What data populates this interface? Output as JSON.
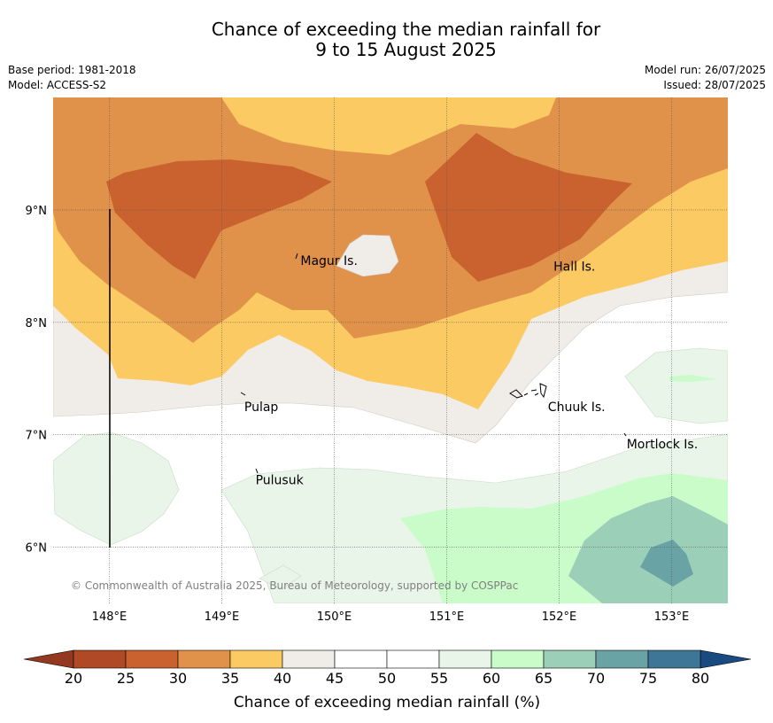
{
  "title": {
    "line1": "Chance of exceeding the median rainfall for",
    "line2": "9 to 15 August 2025"
  },
  "meta": {
    "base_period": "Base period: 1981-2018",
    "model": "Model: ACCESS-S2",
    "model_run": "Model run: 26/07/2025",
    "issued": "Issued: 28/07/2025"
  },
  "map": {
    "lon_range": [
      147.5,
      153.5
    ],
    "lat_range": [
      5.5,
      10.0
    ],
    "lon_ticks": [
      {
        "value": 148,
        "label": "148°E"
      },
      {
        "value": 149,
        "label": "149°E"
      },
      {
        "value": 150,
        "label": "150°E"
      },
      {
        "value": 151,
        "label": "151°E"
      },
      {
        "value": 152,
        "label": "152°E"
      },
      {
        "value": 153,
        "label": "153°E"
      }
    ],
    "lat_ticks": [
      {
        "value": 6,
        "label": "6°N"
      },
      {
        "value": 7,
        "label": "7°N"
      },
      {
        "value": 8,
        "label": "8°N"
      },
      {
        "value": 9,
        "label": "9°N"
      }
    ],
    "gridlines": true,
    "places": [
      {
        "name": "Magur Is.",
        "lon": 149.7,
        "lat": 8.55
      },
      {
        "name": "Hall Is.",
        "lon": 151.95,
        "lat": 8.5
      },
      {
        "name": "Pulap",
        "lon": 149.2,
        "lat": 7.25
      },
      {
        "name": "Chuuk Is.",
        "lon": 151.9,
        "lat": 7.25
      },
      {
        "name": "Mortlock Is.",
        "lon": 152.6,
        "lat": 6.92
      },
      {
        "name": "Pulusuk",
        "lon": 149.3,
        "lat": 6.6
      }
    ],
    "copyright": "© Commonwealth of Australia 2025, Bureau of Meteorology, supported by COSPPac"
  },
  "colorbar": {
    "ticks": [
      "20",
      "25",
      "30",
      "35",
      "40",
      "45",
      "50",
      "55",
      "60",
      "65",
      "70",
      "75",
      "80"
    ],
    "colors": [
      "#b04a26",
      "#c9622f",
      "#e0924a",
      "#fcca63",
      "#f0ede8",
      "#ffffff",
      "#ffffff",
      "#e9f5e9",
      "#c9fcc9",
      "#9bcfb8",
      "#6aa3a5",
      "#3e7697"
    ],
    "under_color": "#933821",
    "over_color": "#1a4b80",
    "label": "Chance of exceeding median rainfall (%)"
  }
}
